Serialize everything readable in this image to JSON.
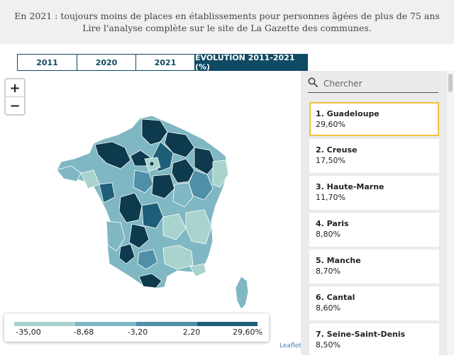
{
  "header": {
    "line1": "En 2021 : toujours moins de places en établissements pour personnes âgées de plus de 75 ans",
    "line2": "Lire l'analyse complète sur le site de La Gazette des communes."
  },
  "tabs": [
    {
      "label": "2011",
      "active": false
    },
    {
      "label": "2020",
      "active": false
    },
    {
      "label": "2021",
      "active": false
    },
    {
      "label": "ÉVOLUTION 2011-2021 (%)",
      "active": true
    }
  ],
  "zoom": {
    "in_label": "+",
    "out_label": "−"
  },
  "legend": {
    "labels": [
      "-35,00",
      "-8,68",
      "-3,20",
      "2,20",
      "29,60%"
    ],
    "colors": [
      "#a9d3cd",
      "#7fb7c3",
      "#4f8fa7",
      "#1e5e78",
      "#0d3a4c"
    ]
  },
  "attribution": "Leaflet",
  "search": {
    "placeholder": "Chercher",
    "icon": "search-icon"
  },
  "ranking": [
    {
      "name": "1. Guadeloupe",
      "value": "29,60%",
      "selected": true
    },
    {
      "name": "2. Creuse",
      "value": "17,50%"
    },
    {
      "name": "3. Haute-Marne",
      "value": "11,70%"
    },
    {
      "name": "4. Paris",
      "value": "8,80%"
    },
    {
      "name": "5. Manche",
      "value": "8,70%"
    },
    {
      "name": "6. Cantal",
      "value": "8,60%"
    },
    {
      "name": "7. Seine-Saint-Denis",
      "value": "8,50%"
    }
  ]
}
